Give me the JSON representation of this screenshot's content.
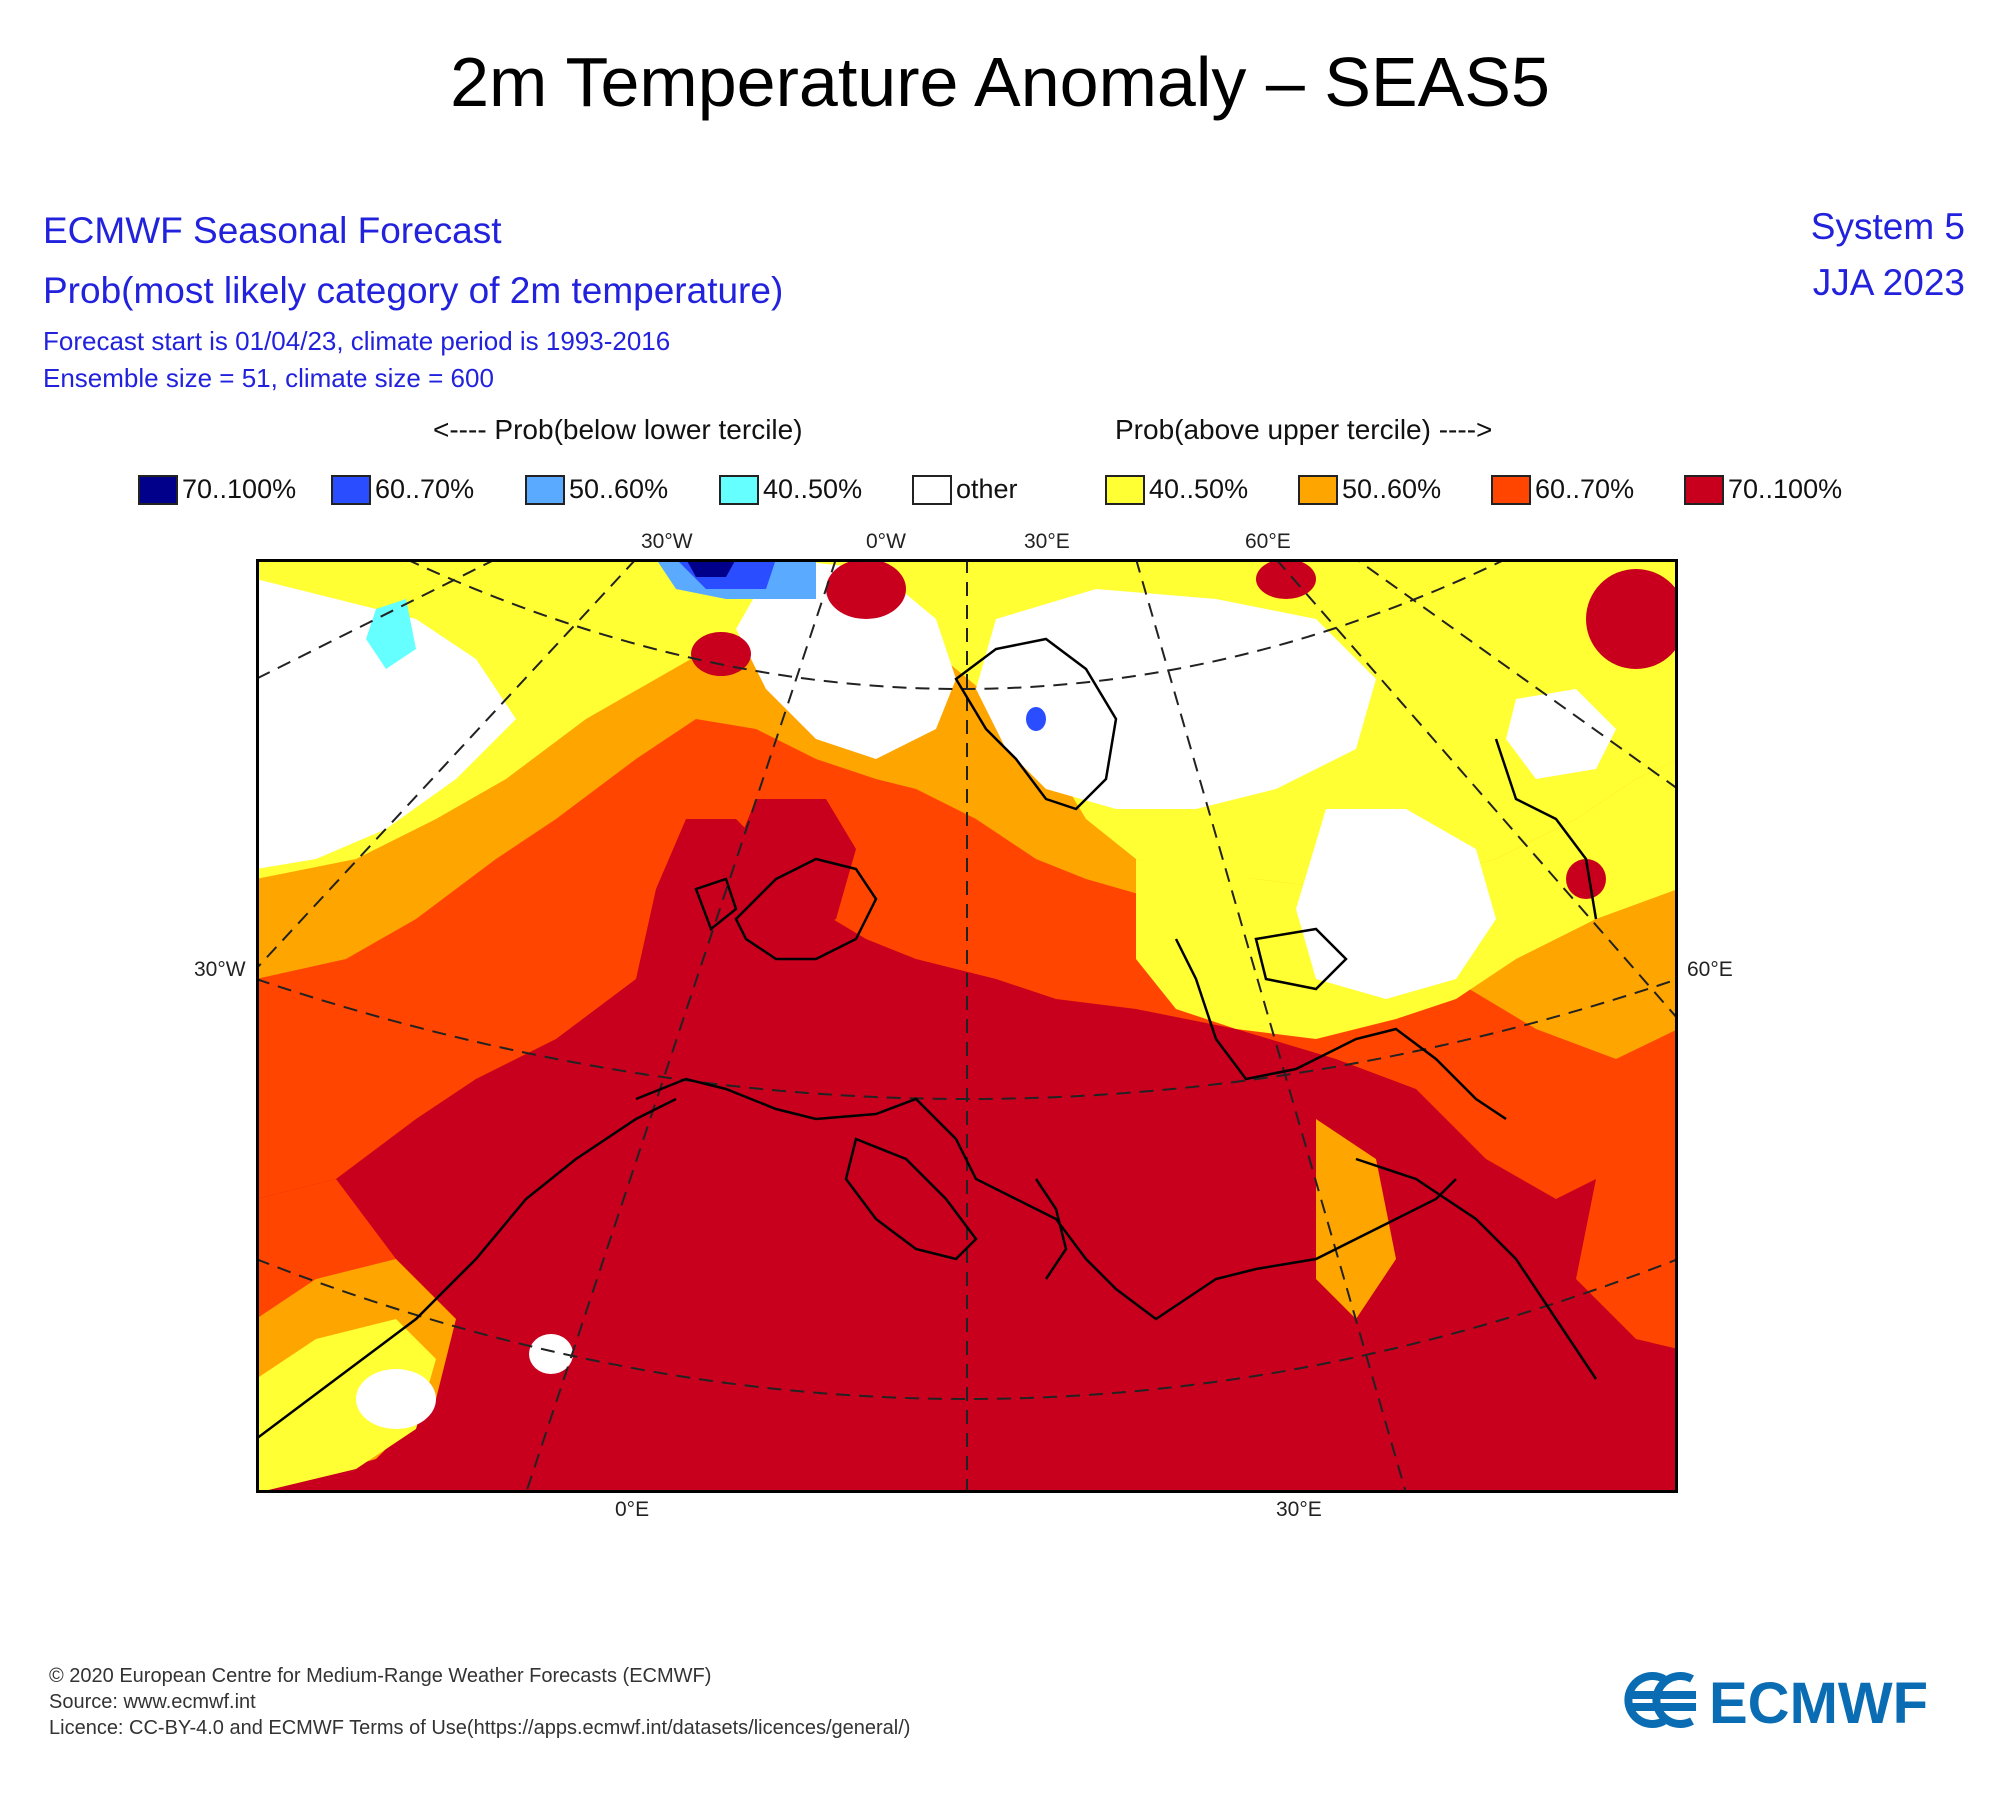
{
  "title": "2m Temperature Anomaly – SEAS5",
  "header": {
    "line1": "ECMWF Seasonal Forecast",
    "line2": "Prob(most likely category of 2m temperature)",
    "line3": "Forecast start is 01/04/23, climate period is 1993-2016",
    "line4": "Ensemble size = 51, climate size = 600",
    "system": "System 5",
    "season": "JJA 2023"
  },
  "legend": {
    "below_label": "<---- Prob(below lower tercile)",
    "above_label": "Prob(above upper tercile) ---->",
    "items": [
      {
        "label": "70..100%",
        "color": "#00008b"
      },
      {
        "label": "60..70%",
        "color": "#2a4dff"
      },
      {
        "label": "50..60%",
        "color": "#5aaaff"
      },
      {
        "label": "40..50%",
        "color": "#66ffff"
      },
      {
        "label": "other",
        "color": "#ffffff"
      },
      {
        "label": "40..50%",
        "color": "#ffff33"
      },
      {
        "label": "50..60%",
        "color": "#ffa500"
      },
      {
        "label": "60..70%",
        "color": "#ff4500"
      },
      {
        "label": "70..100%",
        "color": "#c8001e"
      }
    ]
  },
  "map": {
    "top_ticks": [
      "30°W",
      "0°W",
      "30°E",
      "60°E"
    ],
    "left_tick": "30°W",
    "right_tick": "60°E",
    "bottom_ticks": [
      "0°E",
      "30°E"
    ]
  },
  "footer": {
    "line1": "© 2020 European Centre for Medium-Range Weather Forecasts (ECMWF)",
    "line2": "Source: www.ecmwf.int",
    "line3": "Licence: CC-BY-4.0 and ECMWF Terms of Use(https://apps.ecmwf.int/datasets/licences/general/)"
  },
  "logo_text": "ECMWF",
  "colors": {
    "header_text": "#2222dd",
    "logo_blue": "#0a6db3"
  }
}
